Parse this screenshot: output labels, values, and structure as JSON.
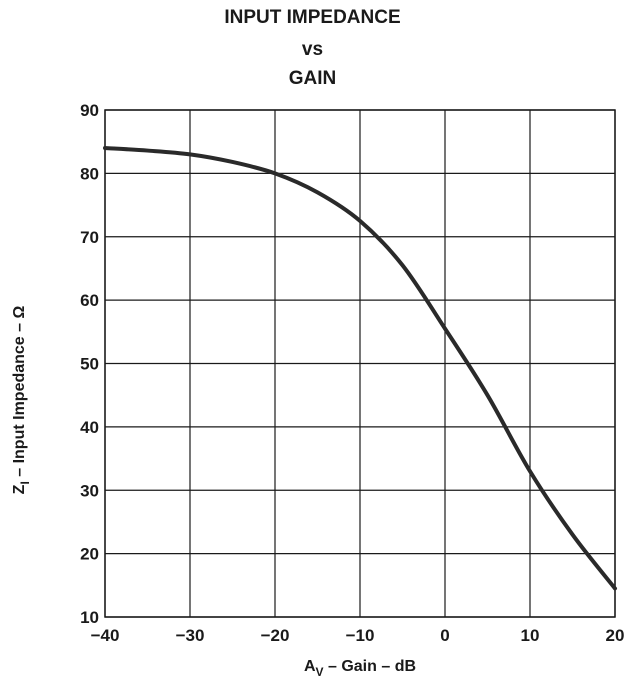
{
  "title_lines": [
    "INPUT IMPEDANCE",
    "vs",
    "GAIN"
  ],
  "chart_data": {
    "type": "line",
    "title": "INPUT IMPEDANCE vs GAIN",
    "xlabel": {
      "main": "A",
      "sub": "V",
      "rest": " – Gain – dB"
    },
    "ylabel": {
      "main": "Z",
      "sub": "I",
      "rest": " – Input Impedance – Ω"
    },
    "xlim": [
      -40,
      20
    ],
    "ylim": [
      10,
      90
    ],
    "xticks": [
      -40,
      -30,
      -20,
      -10,
      0,
      10,
      20
    ],
    "yticks": [
      10,
      20,
      30,
      40,
      50,
      60,
      70,
      80,
      90
    ],
    "grid": true,
    "series": [
      {
        "x": [
          -40,
          -35,
          -30,
          -25,
          -20,
          -15,
          -10,
          -5,
          0,
          5,
          10,
          15,
          20
        ],
        "y": [
          84,
          83.6,
          83,
          81.8,
          80,
          77,
          72.5,
          65.5,
          55.5,
          45,
          33,
          23,
          14.5
        ]
      }
    ],
    "line_color": "#2a2a2a"
  }
}
